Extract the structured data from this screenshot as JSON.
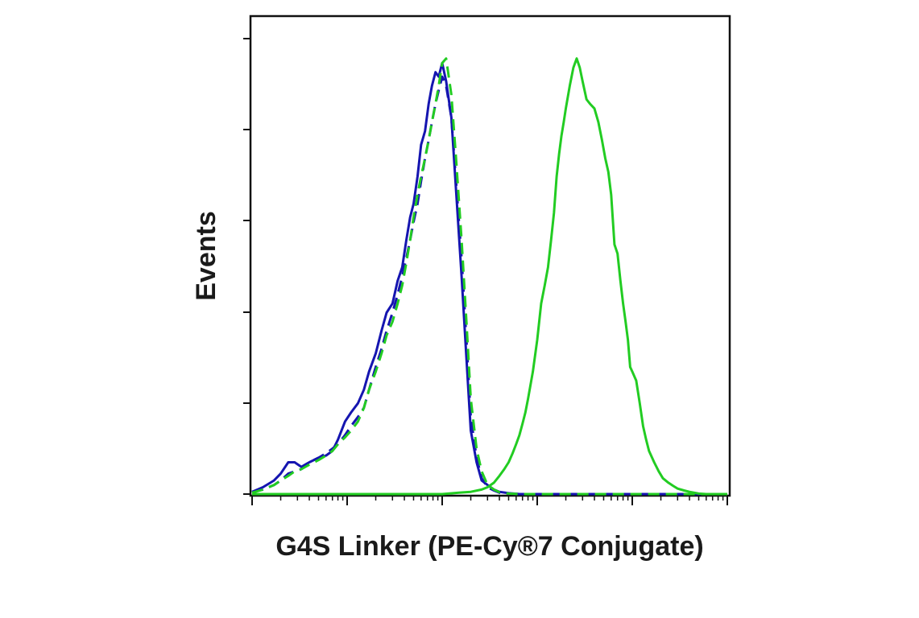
{
  "chart_data": {
    "type": "line",
    "title": "",
    "xlabel": "G4S Linker (PE-Cy®7 Conjugate)",
    "ylabel": "Events",
    "xscale": "log",
    "xlim": [
      1,
      100000
    ],
    "ylim": [
      0,
      105
    ],
    "grid": false,
    "legend": "none",
    "series": [
      {
        "style": "solid",
        "color": "#1515b0",
        "x": [
          1.0,
          1.3,
          1.7,
          2.0,
          2.4,
          2.8,
          3.3,
          4.0,
          5.0,
          6.0,
          7.0,
          8.0,
          9.5,
          11,
          13,
          15,
          17,
          20,
          23,
          26,
          30,
          34,
          38,
          42,
          46,
          50,
          55,
          60,
          66,
          72,
          78,
          85,
          92,
          100,
          110,
          125,
          140,
          160,
          180,
          200,
          230,
          260,
          300,
          350,
          400,
          500,
          650,
          800,
          1000,
          2000,
          5000,
          10000,
          100000
        ],
        "y": [
          0.5,
          1.5,
          3,
          4.5,
          7,
          7,
          6,
          7,
          8,
          8.5,
          9.5,
          12,
          16,
          18,
          20,
          23,
          27,
          31,
          36,
          40,
          42,
          47,
          50,
          56,
          61,
          64,
          70,
          77,
          80,
          86,
          90,
          93,
          92,
          95,
          91,
          83,
          67,
          48,
          30,
          14,
          7,
          3,
          2,
          1,
          0.5,
          0.2,
          0,
          0,
          0,
          0,
          0,
          0,
          0
        ]
      },
      {
        "style": "dashed",
        "color": "#1515b0",
        "x": [
          1.0,
          1.3,
          1.7,
          2.0,
          2.4,
          2.8,
          3.3,
          4.0,
          5.0,
          6.0,
          7.0,
          8.0,
          9.5,
          11,
          13,
          15,
          17,
          20,
          23,
          26,
          30,
          34,
          38,
          42,
          46,
          50,
          55,
          60,
          66,
          72,
          78,
          85,
          92,
          100,
          110,
          125,
          140,
          160,
          180,
          200,
          230,
          260,
          300,
          350,
          400,
          500,
          650,
          800,
          1000,
          2000,
          5000,
          10000,
          100000
        ],
        "y": [
          0.5,
          1,
          2,
          3,
          4.5,
          5,
          5.5,
          7,
          8,
          9,
          10,
          11,
          13,
          15,
          17,
          19,
          23,
          28,
          32,
          36,
          40,
          44,
          48,
          52,
          56,
          60,
          64,
          69,
          74,
          78,
          82,
          86,
          89,
          92,
          90,
          83,
          69,
          52,
          34,
          17,
          8,
          3.5,
          1.5,
          0.8,
          0.3,
          0.1,
          0,
          0,
          0,
          0,
          0,
          0,
          0
        ]
      },
      {
        "style": "dashed",
        "color": "#22cc22",
        "x": [
          1.0,
          1.3,
          1.7,
          2.0,
          2.4,
          2.8,
          3.3,
          4.0,
          5.0,
          6.0,
          7.0,
          8.0,
          9.5,
          11,
          13,
          15,
          17,
          20,
          23,
          26,
          30,
          34,
          38,
          42,
          46,
          50,
          55,
          60,
          66,
          72,
          78,
          85,
          92,
          100,
          110,
          125,
          140,
          160,
          180,
          200,
          230,
          260,
          300,
          350,
          400,
          500,
          650,
          800,
          1000,
          2000,
          5000,
          10000,
          100000
        ],
        "y": [
          0.3,
          1,
          2,
          3,
          4,
          5,
          5.5,
          6.5,
          7.5,
          8.5,
          9.5,
          11,
          12.5,
          14,
          16,
          19,
          23,
          27,
          31,
          35,
          38,
          42,
          46,
          51,
          56,
          61,
          66,
          70,
          74,
          78,
          82,
          86,
          90,
          95,
          96,
          88,
          74,
          56,
          38,
          21,
          10,
          5,
          2,
          1,
          0.4,
          0.1,
          0,
          0,
          0,
          0,
          0,
          0,
          0
        ]
      },
      {
        "style": "solid",
        "color": "#22cc22",
        "x": [
          1.0,
          10,
          100,
          150,
          200,
          260,
          300,
          350,
          400,
          450,
          500,
          550,
          600,
          650,
          700,
          750,
          800,
          900,
          1000,
          1100,
          1200,
          1300,
          1400,
          1500,
          1600,
          1700,
          1800,
          1900,
          2000,
          2200,
          2400,
          2600,
          2800,
          3000,
          3300,
          3600,
          4000,
          4400,
          4800,
          5200,
          5600,
          6000,
          6500,
          7000,
          7500,
          8000,
          8500,
          9000,
          9500,
          10000,
          11000,
          12000,
          13000,
          14000,
          15000,
          17000,
          19000,
          21000,
          24000,
          27000,
          30000,
          35000,
          40000,
          45000,
          50000,
          60000,
          70000,
          80000,
          100000
        ],
        "y": [
          0,
          0,
          0,
          0.3,
          0.5,
          1,
          1.5,
          2.5,
          4,
          5.5,
          7,
          9,
          11,
          13,
          15.5,
          18,
          21,
          27,
          34,
          42,
          46,
          50,
          56,
          62,
          70,
          75,
          79,
          82,
          85,
          90,
          94,
          96,
          94,
          91,
          87,
          86,
          85,
          82,
          78,
          74,
          71,
          66,
          55,
          53,
          47,
          42,
          38,
          34,
          28,
          27,
          25,
          20,
          15,
          12,
          9.5,
          7,
          5,
          3.5,
          2.5,
          1.8,
          1.2,
          0.8,
          0.5,
          0.3,
          0.1,
          0,
          0,
          0,
          0
        ]
      }
    ]
  }
}
